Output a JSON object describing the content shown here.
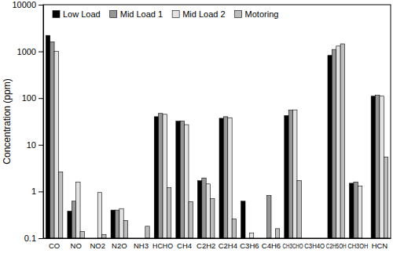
{
  "chart_data": {
    "type": "bar",
    "y_label": "Concentration (ppm)",
    "categories": [
      "CO",
      "NO",
      "NO2",
      "N2O",
      "NH3",
      "HCHO",
      "CH4",
      "C2H2",
      "C2H4",
      "C3H6",
      "C4H6",
      "CH3CHO",
      "C3H4O",
      "C2H5OH",
      "CH3OH",
      "HCN"
    ],
    "series": [
      {
        "name": "Low Load",
        "color": "#000000",
        "values": [
          2200,
          0.38,
          null,
          0.4,
          null,
          40,
          32,
          1.7,
          37,
          0.62,
          null,
          42,
          null,
          820,
          1.5,
          110
        ]
      },
      {
        "name": "Mid Load 1",
        "color": "#969696",
        "values": [
          1600,
          0.62,
          null,
          0.4,
          null,
          47,
          32,
          1.95,
          40,
          null,
          0.82,
          55,
          null,
          1100,
          1.6,
          115
        ]
      },
      {
        "name": "Mid Load 2",
        "color": "#e3e3e3",
        "values": [
          1000,
          1.6,
          0.95,
          0.43,
          null,
          45,
          27,
          1.45,
          38,
          0.13,
          null,
          56,
          null,
          1300,
          1.3,
          110
        ]
      },
      {
        "name": "Motoring",
        "color": "#bdbdbd",
        "values": [
          2.6,
          0.14,
          0.12,
          0.24,
          0.18,
          1.2,
          0.6,
          0.7,
          0.26,
          null,
          0.16,
          1.7,
          null,
          1450,
          null,
          5.5
        ]
      }
    ],
    "ylim": [
      0.1,
      10000
    ],
    "yticks": [
      0.1,
      1,
      10,
      100,
      1000,
      10000
    ],
    "log": "y",
    "grid": false,
    "legend": "top"
  }
}
